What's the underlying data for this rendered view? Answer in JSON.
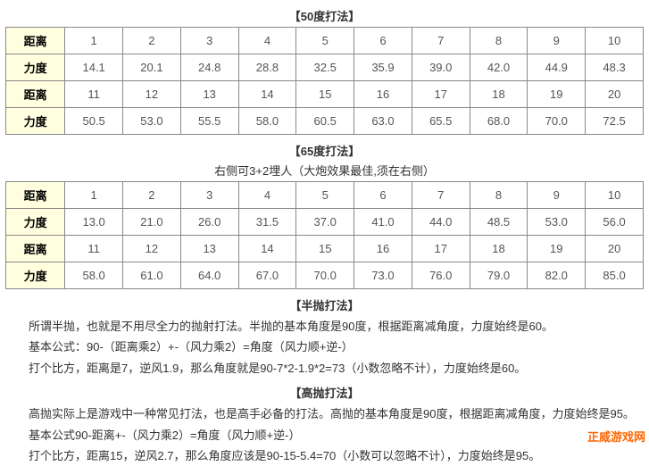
{
  "section50": {
    "title": "【50度打法】",
    "row_labels": {
      "distance": "距离",
      "power": "力度"
    },
    "distances1": [
      "1",
      "2",
      "3",
      "4",
      "5",
      "6",
      "7",
      "8",
      "9",
      "10"
    ],
    "powers1": [
      "14.1",
      "20.1",
      "24.8",
      "28.8",
      "32.5",
      "35.9",
      "39.0",
      "42.0",
      "44.9",
      "48.3"
    ],
    "distances2": [
      "11",
      "12",
      "13",
      "14",
      "15",
      "16",
      "17",
      "18",
      "19",
      "20"
    ],
    "powers2": [
      "50.5",
      "53.0",
      "55.5",
      "58.0",
      "60.5",
      "63.0",
      "65.5",
      "68.0",
      "70.0",
      "72.5"
    ]
  },
  "section65": {
    "title": "【65度打法】",
    "subtitle": "右侧可3+2埋人（大炮效果最佳,须在右侧）",
    "row_labels": {
      "distance": "距离",
      "power": "力度"
    },
    "distances1": [
      "1",
      "2",
      "3",
      "4",
      "5",
      "6",
      "7",
      "8",
      "9",
      "10"
    ],
    "powers1": [
      "13.0",
      "21.0",
      "26.0",
      "31.5",
      "37.0",
      "41.0",
      "44.0",
      "48.5",
      "53.0",
      "56.0"
    ],
    "distances2": [
      "11",
      "12",
      "13",
      "14",
      "15",
      "16",
      "17",
      "18",
      "19",
      "20"
    ],
    "powers2": [
      "58.0",
      "61.0",
      "64.0",
      "67.0",
      "70.0",
      "73.0",
      "76.0",
      "79.0",
      "82.0",
      "85.0"
    ]
  },
  "half_throw": {
    "title": "【半抛打法】",
    "p1": "所谓半抛，也就是不用尽全力的抛射打法。半抛的基本角度是90度，根据距离减角度，力度始终是60。",
    "p2": "基本公式：90-（距离乘2）+-（风力乘2）=角度（风力顺+逆-）",
    "p3": "打个比方，距离是7，逆风1.9，那么角度就是90-7*2-1.9*2=73（小数忽略不计），力度始终是60。"
  },
  "high_throw": {
    "title": "【高抛打法】",
    "p1": "高抛实际上是游戏中一种常见打法，也是高手必备的打法。高抛的基本角度是90度，根据距离减角度，力度始终是95。",
    "p2": "基本公式90-距离+-（风力乘2）=角度（风力顺+逆-）",
    "p3": "打个比方，距离15，逆风2.7，那么角度应该是90-15-5.4=70（小数可以忽略不计），力度始终是95。"
  },
  "watermark": "正威游戏网"
}
